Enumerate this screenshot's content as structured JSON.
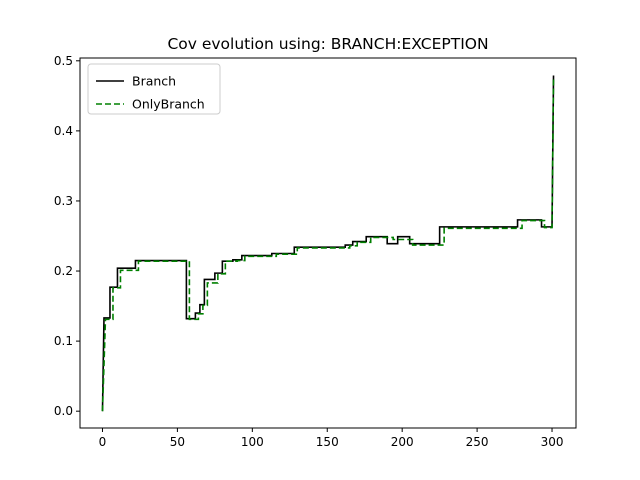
{
  "chart_data": {
    "type": "line",
    "title": "Cov evolution using: BRANCH:EXCEPTION",
    "xlabel": "",
    "ylabel": "",
    "xlim": [
      -15,
      316
    ],
    "ylim": [
      -0.024,
      0.504
    ],
    "xticks": [
      0,
      50,
      100,
      150,
      200,
      250,
      300
    ],
    "yticks": [
      0.0,
      0.1,
      0.2,
      0.3,
      0.4,
      0.5
    ],
    "xtick_labels": [
      "0",
      "50",
      "100",
      "150",
      "200",
      "250",
      "300"
    ],
    "ytick_labels": [
      "0.0",
      "0.1",
      "0.2",
      "0.3",
      "0.4",
      "0.5"
    ],
    "grid": false,
    "legend_position": "upper-left",
    "series": [
      {
        "name": "Branch",
        "color": "#000000",
        "style": "solid",
        "points": [
          [
            0,
            0.0
          ],
          [
            1,
            0.133
          ],
          [
            5,
            0.133
          ],
          [
            5,
            0.177
          ],
          [
            10,
            0.177
          ],
          [
            10,
            0.204
          ],
          [
            22,
            0.204
          ],
          [
            22,
            0.215
          ],
          [
            56,
            0.215
          ],
          [
            56,
            0.132
          ],
          [
            62,
            0.132
          ],
          [
            62,
            0.14
          ],
          [
            65,
            0.14
          ],
          [
            65,
            0.152
          ],
          [
            68,
            0.152
          ],
          [
            68,
            0.188
          ],
          [
            75,
            0.188
          ],
          [
            75,
            0.197
          ],
          [
            80,
            0.197
          ],
          [
            80,
            0.214
          ],
          [
            87,
            0.214
          ],
          [
            87,
            0.216
          ],
          [
            93,
            0.216
          ],
          [
            93,
            0.222
          ],
          [
            113,
            0.222
          ],
          [
            113,
            0.225
          ],
          [
            128,
            0.225
          ],
          [
            128,
            0.234
          ],
          [
            162,
            0.234
          ],
          [
            162,
            0.237
          ],
          [
            167,
            0.237
          ],
          [
            167,
            0.242
          ],
          [
            176,
            0.242
          ],
          [
            176,
            0.249
          ],
          [
            190,
            0.249
          ],
          [
            190,
            0.239
          ],
          [
            197,
            0.239
          ],
          [
            197,
            0.249
          ],
          [
            205,
            0.249
          ],
          [
            205,
            0.239
          ],
          [
            225,
            0.239
          ],
          [
            225,
            0.263
          ],
          [
            277,
            0.263
          ],
          [
            277,
            0.273
          ],
          [
            293,
            0.273
          ],
          [
            293,
            0.263
          ],
          [
            300,
            0.263
          ],
          [
            301,
            0.479
          ]
        ]
      },
      {
        "name": "OnlyBranch",
        "color": "#008000",
        "style": "dashed",
        "points": [
          [
            0,
            0.0
          ],
          [
            2,
            0.131
          ],
          [
            7,
            0.131
          ],
          [
            7,
            0.176
          ],
          [
            12,
            0.176
          ],
          [
            12,
            0.201
          ],
          [
            24,
            0.201
          ],
          [
            24,
            0.214
          ],
          [
            58,
            0.214
          ],
          [
            58,
            0.131
          ],
          [
            64,
            0.131
          ],
          [
            64,
            0.139
          ],
          [
            67,
            0.139
          ],
          [
            67,
            0.151
          ],
          [
            70,
            0.151
          ],
          [
            70,
            0.183
          ],
          [
            77,
            0.183
          ],
          [
            77,
            0.196
          ],
          [
            82,
            0.196
          ],
          [
            82,
            0.214
          ],
          [
            90,
            0.214
          ],
          [
            90,
            0.215
          ],
          [
            95,
            0.215
          ],
          [
            95,
            0.221
          ],
          [
            116,
            0.221
          ],
          [
            116,
            0.224
          ],
          [
            130,
            0.224
          ],
          [
            130,
            0.233
          ],
          [
            165,
            0.233
          ],
          [
            165,
            0.236
          ],
          [
            170,
            0.236
          ],
          [
            170,
            0.241
          ],
          [
            179,
            0.241
          ],
          [
            179,
            0.248
          ],
          [
            194,
            0.248
          ],
          [
            194,
            0.245
          ],
          [
            207,
            0.245
          ],
          [
            207,
            0.237
          ],
          [
            228,
            0.237
          ],
          [
            228,
            0.261
          ],
          [
            280,
            0.261
          ],
          [
            280,
            0.272
          ],
          [
            295,
            0.272
          ],
          [
            295,
            0.262
          ],
          [
            300,
            0.262
          ],
          [
            301,
            0.477
          ]
        ]
      }
    ]
  }
}
